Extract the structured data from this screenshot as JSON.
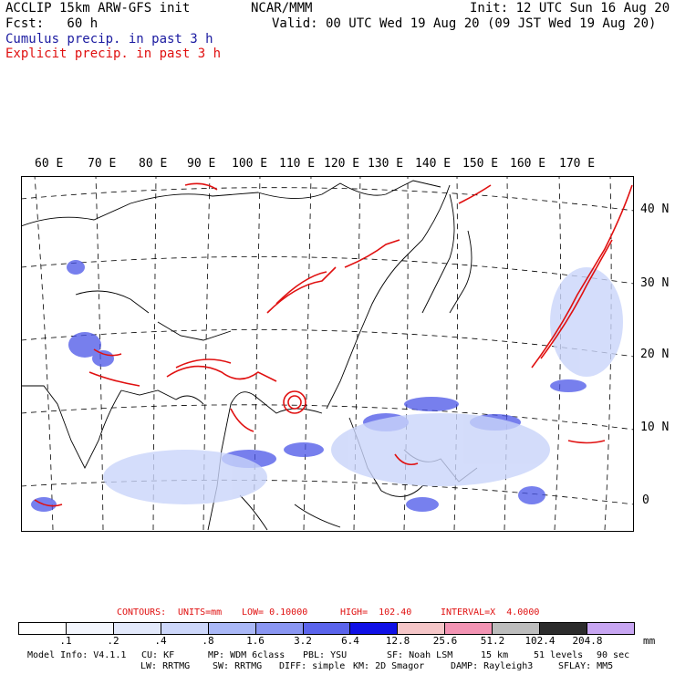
{
  "header": {
    "left1": "ACCLIP 15km ARW-GFS init",
    "center1": "NCAR/MMM",
    "right1": "Init: 12 UTC Sun 16 Aug 20",
    "left2": "Fcst:   60 h",
    "right2": "Valid: 00 UTC Wed 19 Aug 20 (09 JST Wed 19 Aug 20)",
    "line3": "Cumulus precip. in past 3 h",
    "line4": "Explicit precip. in past 3 h"
  },
  "lon_labels": [
    "60 E",
    "70 E",
    "80 E",
    "90 E",
    "100 E",
    "110 E",
    "120 E",
    "130 E",
    "140 E",
    "150 E",
    "160 E",
    "170 E"
  ],
  "lat_labels": [
    "40 N",
    "30 N",
    "20 N",
    "10 N",
    "0"
  ],
  "contours": {
    "label": "CONTOURS:",
    "units": "UNITS=mm",
    "low": "LOW= 0.10000",
    "high": "HIGH=  102.40",
    "interval": "INTERVAL=X  4.0000"
  },
  "colorbar": {
    "colors": [
      "#ffffff",
      "#f3f6fd",
      "#e3e9fb",
      "#cdd7fa",
      "#aab8f7",
      "#8a96f2",
      "#5b64ec",
      "#1010e6",
      "#f5c6c8",
      "#f394b4",
      "#bdbdbd",
      "#2c2c2c",
      "#c8a6f2"
    ],
    "ticks": [
      ".1",
      ".2",
      ".4",
      ".8",
      "1.6",
      "3.2",
      "6.4",
      "12.8",
      "25.6",
      "51.2",
      "102.4",
      "204.8"
    ],
    "unit": "mm"
  },
  "model_info": {
    "line1": [
      "Model Info: V4.1.1",
      "CU: KF",
      "MP: WDM 6class",
      "PBL: YSU",
      "SF: Noah LSM",
      "15 km",
      "51 levels",
      "90 sec"
    ],
    "line2": [
      "LW: RRTMG",
      "SW: RRTMG",
      "DIFF: simple",
      "KM: 2D Smagor",
      "DAMP: Rayleigh3",
      "SFLAY: MM5"
    ]
  }
}
